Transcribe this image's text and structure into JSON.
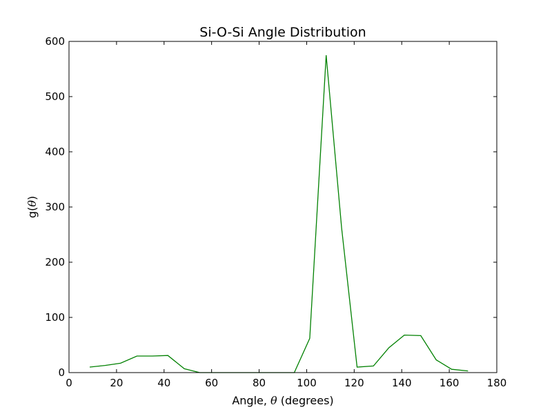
{
  "chart_data": {
    "type": "line",
    "title": "Si-O-Si Angle Distribution",
    "xlabel_prefix": "Angle, ",
    "xlabel_symbol": "θ",
    "xlabel_suffix": " (degrees)",
    "ylabel_prefix": "g(",
    "ylabel_symbol": "θ",
    "ylabel_suffix": ")",
    "xlim": [
      0,
      180
    ],
    "ylim": [
      0,
      600
    ],
    "xticks": [
      0,
      20,
      40,
      60,
      80,
      100,
      120,
      140,
      160,
      180
    ],
    "yticks": [
      0,
      100,
      200,
      300,
      400,
      500,
      600
    ],
    "grid": false,
    "series": [
      {
        "color": "#008000",
        "x": [
          8.7,
          15.2,
          21.7,
          28.6,
          35.1,
          41.6,
          48.5,
          55.0,
          61.5,
          68.4,
          74.9,
          81.4,
          88.3,
          94.8,
          101.3,
          108.2,
          114.7,
          121.2,
          128.1,
          134.6,
          141.1,
          148.0,
          154.5,
          161.0,
          167.9
        ],
        "y": [
          10,
          13,
          17,
          30,
          30,
          31,
          7,
          0,
          0,
          0,
          0,
          0,
          0,
          0,
          62,
          575,
          262,
          10,
          12,
          45,
          68,
          67,
          23,
          6,
          3
        ]
      }
    ]
  }
}
